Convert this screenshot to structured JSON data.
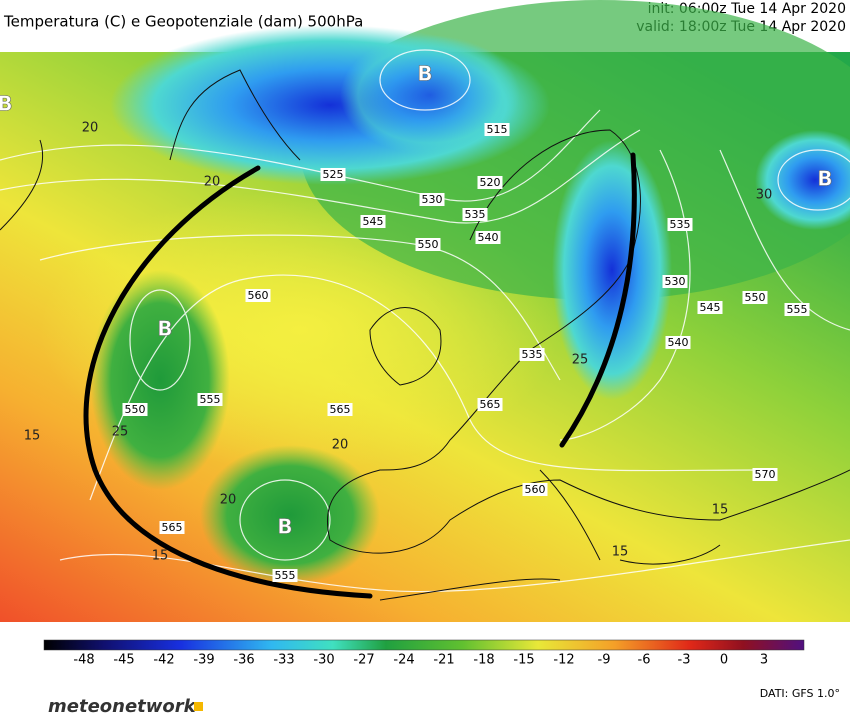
{
  "header": {
    "title": "Temperatura (C) e Geopotenziale (dam) 500hPa",
    "init": "init: 06:00z Tue 14 Apr 2020",
    "valid": "valid: 18:00z Tue 14 Apr 2020"
  },
  "map": {
    "labels": [
      "B",
      "B",
      "B",
      "B",
      "B",
      "515",
      "520",
      "525",
      "530",
      "535",
      "545",
      "550",
      "540",
      "560",
      "555",
      "550",
      "565",
      "560",
      "570",
      "555",
      "565",
      "535",
      "530",
      "545",
      "550",
      "555",
      "540",
      "535",
      "565",
      "20",
      "20",
      "25",
      "15",
      "15",
      "15",
      "30",
      "25",
      "20",
      "15",
      "20"
    ]
  },
  "colorbar": {
    "ticks": [
      "-48",
      "-45",
      "-42",
      "-39",
      "-36",
      "-33",
      "-30",
      "-27",
      "-24",
      "-21",
      "-18",
      "-15",
      "-12",
      "-9",
      "-6",
      "-3",
      "0",
      "3"
    ]
  },
  "footer": {
    "logo": "meteonetwork",
    "source": "DATI: GFS 1.0°"
  }
}
